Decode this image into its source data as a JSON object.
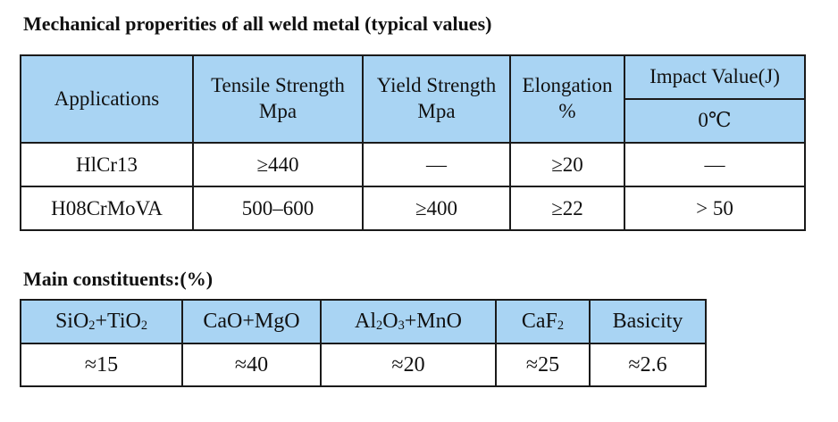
{
  "mechanical": {
    "title": "Mechanical properities of all weld metal (typical values)",
    "headers": {
      "applications": "Applications",
      "tensile": "Tensile Strength",
      "tensile_unit": "Mpa",
      "yield": "Yield Strength",
      "yield_unit": "Mpa",
      "elongation": "Elongation",
      "elongation_unit": "%",
      "impact": "Impact Value(J)",
      "impact_temp": "0℃"
    },
    "rows": [
      {
        "application": "HlCr13",
        "tensile": "≥440",
        "yield": "—",
        "elongation": "≥20",
        "impact": "—"
      },
      {
        "application": "H08CrMoVA",
        "tensile": "500–600",
        "yield": "≥400",
        "elongation": "≥22",
        "impact": "> 50"
      }
    ]
  },
  "constituents": {
    "title": "Main constituents:(%)",
    "headers": {
      "c1_a": "SiO",
      "c1_a_sub": "2",
      "c1_b": "+TiO",
      "c1_b_sub": "2",
      "c2": "CaO+MgO",
      "c3_a": "Al",
      "c3_a_sub": "2",
      "c3_b": "O",
      "c3_b_sub": "3",
      "c3_c": "+MnO",
      "c4_a": "CaF",
      "c4_a_sub": "2",
      "c5": "Basicity"
    },
    "values": [
      "≈15",
      "≈40",
      "≈20",
      "≈25",
      "≈2.6"
    ]
  }
}
